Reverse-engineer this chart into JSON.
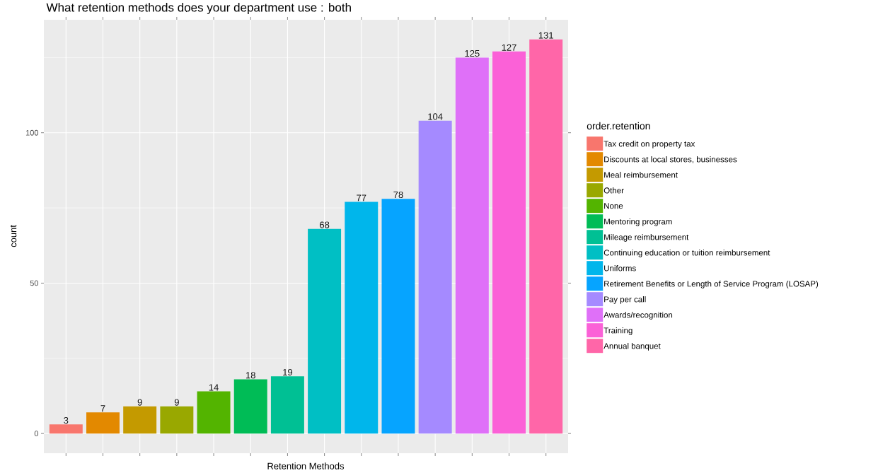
{
  "chart_data": {
    "type": "bar",
    "title": "What retention methods does your department use : both",
    "xlabel": "Retention Methods",
    "ylabel": "count",
    "legend_title": "order.retention",
    "categories": [
      null,
      null,
      null,
      null,
      null,
      null,
      null,
      null,
      null,
      null,
      null,
      null,
      null,
      null
    ],
    "series": [
      {
        "name": "Tax credit on property tax",
        "color": "#f8766d",
        "values": [
          3,
          null,
          null,
          null,
          null,
          null,
          null,
          null,
          null,
          null,
          null,
          null,
          null,
          null
        ]
      },
      {
        "name": "Discounts at local stores, businesses",
        "color": "#e38900",
        "values": [
          null,
          7,
          null,
          null,
          null,
          null,
          null,
          null,
          null,
          null,
          null,
          null,
          null,
          null
        ]
      },
      {
        "name": "Meal reimbursement",
        "color": "#c49a00",
        "values": [
          null,
          null,
          9,
          null,
          null,
          null,
          null,
          null,
          null,
          null,
          null,
          null,
          null,
          null
        ]
      },
      {
        "name": "Other",
        "color": "#99a800",
        "values": [
          null,
          null,
          null,
          9,
          null,
          null,
          null,
          null,
          null,
          null,
          null,
          null,
          null,
          null
        ]
      },
      {
        "name": "None",
        "color": "#53b400",
        "values": [
          null,
          null,
          null,
          null,
          14,
          null,
          null,
          null,
          null,
          null,
          null,
          null,
          null,
          null
        ]
      },
      {
        "name": "Mentoring program",
        "color": "#00bc56",
        "values": [
          null,
          null,
          null,
          null,
          null,
          18,
          null,
          null,
          null,
          null,
          null,
          null,
          null,
          null
        ]
      },
      {
        "name": "Mileage reimbursement",
        "color": "#00c094",
        "values": [
          null,
          null,
          null,
          null,
          null,
          null,
          19,
          null,
          null,
          null,
          null,
          null,
          null,
          null
        ]
      },
      {
        "name": "Continuing education or tuition reimbursement",
        "color": "#00bfc4",
        "values": [
          null,
          null,
          null,
          null,
          null,
          null,
          null,
          68,
          null,
          null,
          null,
          null,
          null,
          null
        ]
      },
      {
        "name": "Uniforms",
        "color": "#00b6eb",
        "values": [
          null,
          null,
          null,
          null,
          null,
          null,
          null,
          null,
          77,
          null,
          null,
          null,
          null,
          null
        ]
      },
      {
        "name": "Retirement Benefits or Length of Service Program (LOSAP)",
        "color": "#06a4ff",
        "values": [
          null,
          null,
          null,
          null,
          null,
          null,
          null,
          null,
          null,
          78,
          null,
          null,
          null,
          null
        ]
      },
      {
        "name": "Pay per call",
        "color": "#a58aff",
        "values": [
          null,
          null,
          null,
          null,
          null,
          null,
          null,
          null,
          null,
          null,
          104,
          null,
          null,
          null
        ]
      },
      {
        "name": "Awards/recognition",
        "color": "#df70f8",
        "values": [
          null,
          null,
          null,
          null,
          null,
          null,
          null,
          null,
          null,
          null,
          null,
          125,
          null,
          null
        ]
      },
      {
        "name": "Training",
        "color": "#fb61d7",
        "values": [
          null,
          null,
          null,
          null,
          null,
          null,
          null,
          null,
          null,
          null,
          null,
          null,
          127,
          null
        ]
      },
      {
        "name": "Annual banquet",
        "color": "#ff66a8",
        "values": [
          null,
          null,
          null,
          null,
          null,
          null,
          null,
          null,
          null,
          null,
          null,
          null,
          null,
          131
        ]
      }
    ],
    "ylim": [
      -6.55,
      137.55
    ],
    "yticks": [
      0,
      {
        "value": 25,
        "label": null
      },
      50,
      {
        "value": 75,
        "label": null
      },
      100,
      {
        "value": 125,
        "label": null
      }
    ],
    "grid": true,
    "legend": "right",
    "tick_labels": "y",
    "data_labels": true
  }
}
